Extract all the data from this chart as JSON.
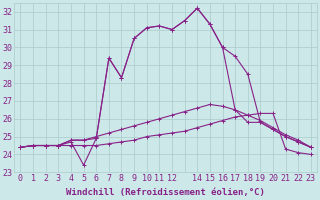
{
  "xlabel": "Windchill (Refroidissement éolien,°C)",
  "bg_color": "#cce8e8",
  "grid_color": "#aacccc",
  "line_color": "#882288",
  "ylim": [
    23,
    32.5
  ],
  "yticks": [
    23,
    24,
    25,
    26,
    27,
    28,
    29,
    30,
    31,
    32
  ],
  "xtick_labels": [
    "0",
    "1",
    "2",
    "3",
    "4",
    "5",
    "6",
    "7",
    "8",
    "9",
    "10",
    "11",
    "12",
    "",
    "14",
    "15",
    "16",
    "17",
    "18",
    "19",
    "20",
    "21",
    "22",
    "23"
  ],
  "series": [
    [
      24.4,
      24.5,
      24.5,
      24.5,
      24.5,
      24.5,
      24.5,
      24.6,
      24.7,
      24.8,
      25.0,
      25.1,
      25.2,
      25.3,
      25.5,
      25.7,
      25.9,
      26.1,
      26.2,
      26.3,
      26.3,
      24.3,
      24.1,
      24.0
    ],
    [
      24.4,
      24.5,
      24.5,
      24.5,
      24.7,
      23.4,
      24.9,
      29.4,
      28.3,
      30.5,
      31.1,
      31.2,
      31.0,
      31.5,
      32.2,
      31.3,
      30.0,
      29.5,
      28.5,
      25.8,
      25.4,
      25.0,
      24.7,
      24.4
    ],
    [
      24.4,
      24.5,
      24.5,
      24.5,
      24.8,
      24.8,
      24.9,
      29.4,
      28.3,
      30.5,
      31.1,
      31.2,
      31.0,
      31.5,
      32.2,
      31.3,
      30.0,
      26.5,
      25.8,
      25.8,
      25.4,
      25.0,
      24.7,
      24.4
    ],
    [
      24.4,
      24.5,
      24.5,
      24.5,
      24.8,
      24.8,
      25.0,
      25.2,
      25.4,
      25.6,
      25.8,
      26.0,
      26.2,
      26.4,
      26.6,
      26.8,
      26.7,
      26.5,
      26.2,
      25.9,
      25.5,
      25.1,
      24.8,
      24.4
    ]
  ],
  "fontsize_xlabel": 6.5,
  "fontsize_tick": 6.0,
  "linewidth": 0.8,
  "markersize": 2.5
}
